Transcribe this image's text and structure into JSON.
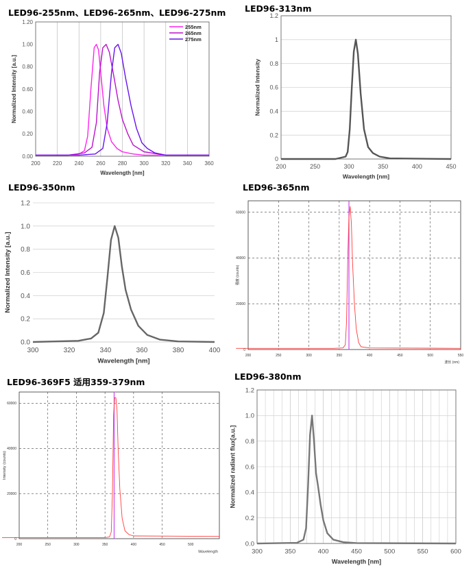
{
  "chart_data": [
    {
      "id": "p1",
      "type": "line",
      "title": "LED96-255nm、LED96-265nm、LED96-275nm",
      "xlabel": "Wavelength [nm]",
      "ylabel": "Normalized Intensity [a.u.]",
      "xlim": [
        200,
        360
      ],
      "ylim": [
        0,
        1.2
      ],
      "xticks": [
        200,
        220,
        240,
        260,
        280,
        300,
        320,
        340,
        360
      ],
      "xtick_labels": [
        "200",
        "220",
        "240",
        "260",
        "280",
        "300",
        "320",
        "340",
        "360"
      ],
      "yticks": [
        0,
        0.2,
        0.4,
        0.6,
        0.8,
        1.0,
        1.2
      ],
      "ytick_labels": [
        "0.00",
        "0.20",
        "0.40",
        "0.60",
        "0.80",
        "1.00",
        "1.20"
      ],
      "grid": "vertical",
      "legend_position": "top-right",
      "series": [
        {
          "name": "255nm",
          "color": "#ff22ee",
          "x": [
            200,
            230,
            240,
            245,
            248,
            251,
            254,
            256,
            258,
            260,
            263,
            266,
            270,
            275,
            280,
            290,
            300,
            320,
            360
          ],
          "y": [
            0.01,
            0.01,
            0.02,
            0.05,
            0.18,
            0.6,
            0.97,
            1.0,
            0.95,
            0.75,
            0.45,
            0.25,
            0.13,
            0.07,
            0.04,
            0.02,
            0.01,
            0.01,
            0.01
          ]
        },
        {
          "name": "265nm",
          "color": "#bb11cc",
          "x": [
            200,
            230,
            245,
            252,
            256,
            259,
            262,
            265,
            268,
            272,
            276,
            280,
            285,
            290,
            300,
            320,
            360
          ],
          "y": [
            0.01,
            0.01,
            0.03,
            0.08,
            0.3,
            0.75,
            0.97,
            1.0,
            0.93,
            0.72,
            0.5,
            0.33,
            0.2,
            0.1,
            0.04,
            0.01,
            0.01
          ]
        },
        {
          "name": "275nm",
          "color": "#6611ee",
          "x": [
            200,
            240,
            255,
            262,
            266,
            270,
            273,
            276,
            279,
            283,
            288,
            293,
            298,
            303,
            310,
            320,
            360
          ],
          "y": [
            0.01,
            0.01,
            0.02,
            0.07,
            0.3,
            0.75,
            0.97,
            1.0,
            0.92,
            0.7,
            0.45,
            0.25,
            0.12,
            0.07,
            0.03,
            0.01,
            0.01
          ]
        }
      ]
    },
    {
      "id": "p2",
      "type": "line",
      "title": "LED96-313nm",
      "xlabel": "Wavelength [nm]",
      "ylabel": "Normalized Intensity",
      "xlim": [
        200,
        450
      ],
      "ylim": [
        0,
        1.2
      ],
      "xticks": [
        200,
        250,
        300,
        350,
        400,
        450
      ],
      "xtick_labels": [
        "200",
        "250",
        "300",
        "350",
        "400",
        "450"
      ],
      "yticks": [
        0,
        0.2,
        0.4,
        0.6,
        0.8,
        1.0,
        1.2
      ],
      "ytick_labels": [
        "0",
        "0.2",
        "0.4",
        "0.6",
        "0.8",
        "1",
        "1.2"
      ],
      "grid": "horizontal",
      "series": [
        {
          "color": "#555555",
          "x": [
            200,
            280,
            295,
            298,
            301,
            304,
            307,
            310,
            313,
            317,
            322,
            328,
            335,
            345,
            360,
            450
          ],
          "y": [
            0,
            0,
            0.02,
            0.06,
            0.25,
            0.6,
            0.9,
            1.0,
            0.88,
            0.55,
            0.25,
            0.1,
            0.05,
            0.02,
            0.005,
            0
          ]
        }
      ]
    },
    {
      "id": "p3",
      "type": "line",
      "title": "LED96-350nm",
      "xlabel": "Wavelength [nm]",
      "ylabel": "Normalized Intensity [a.u.]",
      "xlim": [
        300,
        400
      ],
      "ylim": [
        0,
        1.2
      ],
      "xticks": [
        300,
        320,
        340,
        360,
        380,
        400
      ],
      "xtick_labels": [
        "300",
        "320",
        "340",
        "360",
        "380",
        "400"
      ],
      "yticks": [
        0,
        0.2,
        0.4,
        0.6,
        0.8,
        1.0,
        1.2
      ],
      "ytick_labels": [
        "0.0",
        "0.2",
        "0.4",
        "0.6",
        "0.8",
        "1.0",
        "1.2"
      ],
      "grid": "horizontal",
      "series": [
        {
          "color": "#666666",
          "x": [
            300,
            325,
            332,
            336,
            339,
            341,
            343,
            345,
            347,
            349,
            351,
            354,
            358,
            363,
            370,
            380,
            400
          ],
          "y": [
            0,
            0.01,
            0.03,
            0.08,
            0.25,
            0.55,
            0.88,
            1.0,
            0.9,
            0.65,
            0.45,
            0.28,
            0.14,
            0.06,
            0.02,
            0.005,
            0
          ]
        }
      ]
    },
    {
      "id": "p4",
      "type": "line",
      "title": "LED96-365nm",
      "xlabel": "波长 (nm)",
      "ylabel": "强度 (counts)",
      "xlim": [
        200,
        550
      ],
      "ylim": [
        0,
        65000
      ],
      "xticks": [
        200,
        250,
        300,
        350,
        400,
        450,
        500,
        550
      ],
      "xtick_labels": [
        "200",
        "250",
        "300",
        "350",
        "400",
        "450",
        "500",
        "550"
      ],
      "yticks": [
        0,
        20000,
        40000,
        60000
      ],
      "ytick_labels": [
        "0",
        "20000",
        "40000",
        "60000"
      ],
      "grid": "both-dashed",
      "marker_x": 366,
      "series": [
        {
          "color": "#ff3b3b",
          "x": [
            180,
            340,
            356,
            360,
            362,
            364,
            366,
            368,
            370,
            372,
            375,
            378,
            382,
            386,
            400,
            550
          ],
          "y": [
            500,
            500,
            700,
            2000,
            12000,
            40000,
            58000,
            62500,
            55000,
            38000,
            20000,
            9000,
            3000,
            1200,
            700,
            500
          ]
        }
      ]
    },
    {
      "id": "p5",
      "type": "line",
      "title": "LED96-369F5  适用359-379nm",
      "xlabel": "Wavelength",
      "ylabel": "Intensity (counts)",
      "xlim": [
        200,
        550
      ],
      "ylim": [
        0,
        65000
      ],
      "xticks": [
        200,
        250,
        300,
        350,
        400,
        450,
        500
      ],
      "xtick_labels": [
        "200",
        "250",
        "300",
        "350",
        "400",
        "450",
        "500"
      ],
      "yticks": [
        0,
        20000,
        40000,
        60000
      ],
      "ytick_labels": [
        "0",
        "20000",
        "40000",
        "60000"
      ],
      "grid": "both-dashed",
      "marker_x": 366,
      "series": [
        {
          "color": "#ff3b3b",
          "x": [
            170,
            350,
            358,
            361,
            363,
            365,
            367,
            369,
            371,
            373,
            376,
            380,
            385,
            392,
            400,
            550
          ],
          "y": [
            500,
            500,
            800,
            3000,
            20000,
            55000,
            62500,
            62500,
            57000,
            40000,
            22000,
            9000,
            3500,
            1800,
            1200,
            1000
          ]
        }
      ]
    },
    {
      "id": "p6",
      "type": "line",
      "title": "LED96-380nm",
      "xlabel": "Wavelength [nm]",
      "ylabel": "Normalized radiant flux[a.u.]",
      "xlim": [
        300,
        600
      ],
      "ylim": [
        0,
        1.2
      ],
      "xticks": [
        300,
        350,
        400,
        450,
        500,
        550,
        600
      ],
      "xtick_labels": [
        "300",
        "350",
        "400",
        "450",
        "500",
        "550",
        "600"
      ],
      "yticks": [
        0,
        0.2,
        0.4,
        0.6,
        0.8,
        1.0,
        1.2
      ],
      "ytick_labels": [
        "0.0",
        "0.2",
        "0.4",
        "0.6",
        "0.8",
        "1.0",
        "1.2"
      ],
      "grid": "both-dense",
      "series": [
        {
          "color": "#777777",
          "x": [
            300,
            360,
            370,
            374,
            377,
            380,
            383,
            386,
            389,
            392,
            396,
            400,
            406,
            415,
            430,
            450,
            600
          ],
          "y": [
            0,
            0.005,
            0.03,
            0.12,
            0.45,
            0.85,
            1.0,
            0.8,
            0.55,
            0.45,
            0.3,
            0.18,
            0.08,
            0.03,
            0.01,
            0.003,
            0
          ]
        }
      ]
    }
  ]
}
